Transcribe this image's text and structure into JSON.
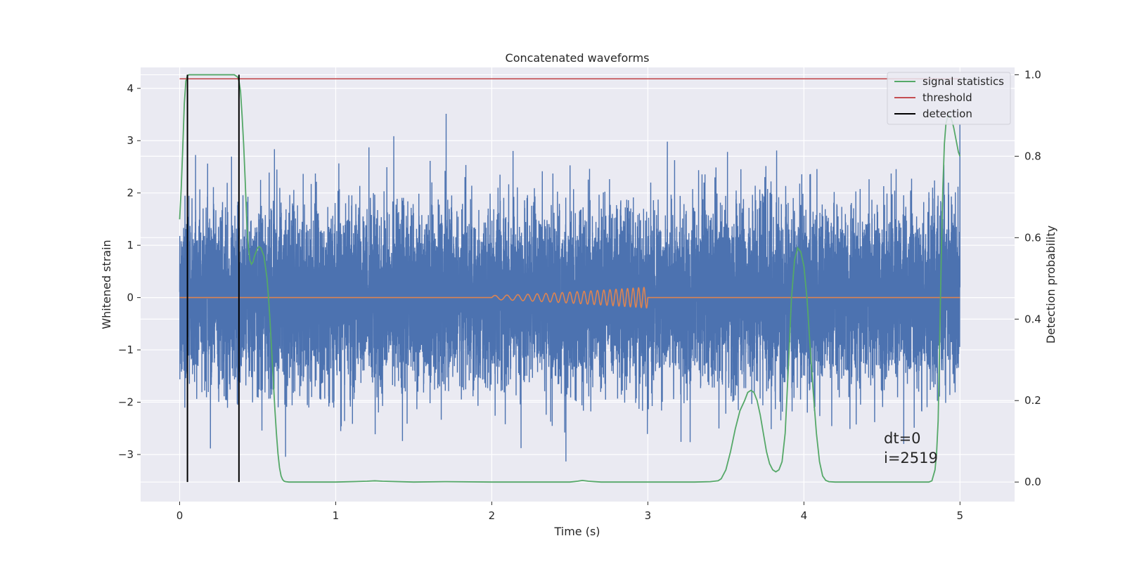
{
  "chart_data": {
    "type": "line",
    "title": "Concatenated waveforms",
    "xlabel": "Time (s)",
    "ylabel": "Whitened strain",
    "ylabel_right": "Detection probability",
    "xlim": [
      -0.25,
      5.35
    ],
    "ylim": [
      -3.9,
      4.4
    ],
    "ylim_right": [
      -0.048,
      1.018
    ],
    "xticks": [
      0,
      1,
      2,
      3,
      4,
      5
    ],
    "yticks": [
      -3,
      -2,
      -1,
      0,
      1,
      2,
      3,
      4
    ],
    "yticks_right": [
      0.0,
      0.2,
      0.4,
      0.6,
      0.8,
      1.0
    ],
    "grid": true,
    "legend_position": "top-right",
    "colors": {
      "strain": "#4c72b0",
      "template": "#dd8452",
      "signal_statistics": "#55a868",
      "threshold": "#c44e52",
      "detection": "#000000",
      "background": "#eaeaf2",
      "grid": "#ffffff"
    },
    "strain": {
      "x_range": [
        0,
        5
      ],
      "sample_rate": 2048,
      "approx_std": 0.85,
      "min": -3.5,
      "max": 4.0
    },
    "template": {
      "t_start": 2.0,
      "t_end": 3.0,
      "amplitude_start": 0.04,
      "amplitude_end": 0.2,
      "freq_start_hz": 12,
      "freq_end_hz": 30
    },
    "series": [
      {
        "name": "signal statistics",
        "axis": "right",
        "x": [
          0.0,
          0.01,
          0.02,
          0.03,
          0.04,
          0.05,
          0.06,
          0.08,
          0.1,
          0.15,
          0.2,
          0.25,
          0.3,
          0.35,
          0.37,
          0.38,
          0.39,
          0.4,
          0.41,
          0.42,
          0.43,
          0.44,
          0.45,
          0.46,
          0.47,
          0.48,
          0.49,
          0.5,
          0.51,
          0.52,
          0.54,
          0.56,
          0.57,
          0.58,
          0.59,
          0.6,
          0.61,
          0.62,
          0.63,
          0.64,
          0.65,
          0.66,
          0.67,
          0.68,
          0.7,
          0.75,
          0.8,
          1.0,
          1.2,
          1.25,
          1.3,
          1.5,
          1.7,
          2.0,
          2.2,
          2.5,
          2.55,
          2.58,
          2.62,
          2.7,
          3.0,
          3.3,
          3.4,
          3.45,
          3.47,
          3.5,
          3.53,
          3.56,
          3.59,
          3.62,
          3.64,
          3.66,
          3.68,
          3.7,
          3.72,
          3.74,
          3.76,
          3.78,
          3.8,
          3.82,
          3.84,
          3.86,
          3.88,
          3.9,
          3.92,
          3.94,
          3.96,
          3.98,
          4.0,
          4.02,
          4.04,
          4.06,
          4.08,
          4.1,
          4.12,
          4.14,
          4.16,
          4.2,
          4.3,
          4.5,
          4.7,
          4.8,
          4.82,
          4.84,
          4.85,
          4.86,
          4.87,
          4.88,
          4.89,
          4.9,
          4.91,
          4.92,
          4.93,
          4.94,
          4.95,
          4.96,
          4.97,
          4.98,
          4.99,
          5.0
        ],
        "values": [
          0.645,
          0.72,
          0.82,
          0.93,
          0.985,
          0.998,
          1.0,
          1.0,
          1.0,
          1.0,
          1.0,
          1.0,
          1.0,
          1.0,
          0.995,
          0.985,
          0.96,
          0.9,
          0.83,
          0.74,
          0.64,
          0.58,
          0.545,
          0.535,
          0.54,
          0.555,
          0.565,
          0.575,
          0.578,
          0.575,
          0.555,
          0.5,
          0.45,
          0.39,
          0.32,
          0.25,
          0.18,
          0.12,
          0.07,
          0.035,
          0.015,
          0.006,
          0.002,
          0.001,
          0.0,
          0.0,
          0.0,
          0.0,
          0.002,
          0.003,
          0.002,
          0.0,
          0.001,
          0.0,
          0.0,
          0.0,
          0.002,
          0.004,
          0.002,
          0.0,
          0.0,
          0.0,
          0.001,
          0.003,
          0.008,
          0.03,
          0.075,
          0.13,
          0.175,
          0.2,
          0.22,
          0.225,
          0.22,
          0.2,
          0.165,
          0.12,
          0.075,
          0.045,
          0.03,
          0.025,
          0.03,
          0.05,
          0.12,
          0.28,
          0.45,
          0.545,
          0.575,
          0.565,
          0.53,
          0.45,
          0.33,
          0.22,
          0.12,
          0.05,
          0.015,
          0.004,
          0.001,
          0.0,
          0.0,
          0.0,
          0.0,
          0.0,
          0.003,
          0.03,
          0.07,
          0.15,
          0.35,
          0.55,
          0.72,
          0.83,
          0.88,
          0.895,
          0.9,
          0.895,
          0.885,
          0.87,
          0.85,
          0.83,
          0.81,
          0.8
        ]
      },
      {
        "name": "threshold",
        "axis": "right",
        "value": 0.99
      },
      {
        "name": "detection",
        "axis": "right",
        "x": [
          0.05,
          0.38
        ]
      }
    ],
    "legend": [
      "signal statistics",
      "threshold",
      "detection"
    ],
    "annotations": [
      "dt=0",
      "i=2519"
    ]
  }
}
